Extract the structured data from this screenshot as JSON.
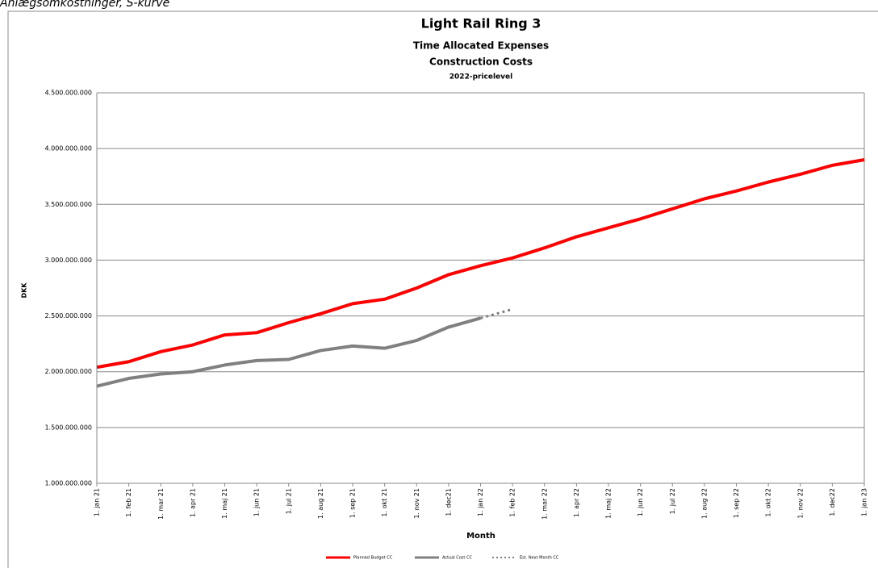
{
  "heading": "Anlægsomkostninger, S-kurve",
  "chart_data": {
    "type": "line",
    "title": "Light Rail Ring 3",
    "subtitle": "Time Allocated Expenses",
    "subtitle2": "Construction Costs",
    "subtitle3": "2022-pricelevel",
    "y_label": "DKK",
    "x_label": "Month",
    "categories": [
      "1. jan 21",
      "1. feb 21",
      "1. mar 21",
      "1. apr 21",
      "1. maj 21",
      "1. jun 21",
      "1. jul 21",
      "1. aug 21",
      "1. sep 21",
      "1. okt 21",
      "1. nov 21",
      "1. dec21",
      "1. jan 22",
      "1. feb 22",
      "1. mar 22",
      "1. apr 22",
      "1. maj 22",
      "1. jun 22",
      "1. jul 22",
      "1. aug 22",
      "1. sep 22",
      "1. okt 22",
      "1. nov 22",
      "1. dec22",
      "1. jan 23"
    ],
    "series": [
      {
        "name": "Planned Budget CC",
        "color": "#ff0000",
        "dotted": false,
        "values": [
          2040000000,
          2090000000,
          2180000000,
          2240000000,
          2330000000,
          2350000000,
          2440000000,
          2520000000,
          2610000000,
          2650000000,
          2750000000,
          2870000000,
          2950000000,
          3020000000,
          3110000000,
          3210000000,
          3290000000,
          3370000000,
          3460000000,
          3550000000,
          3620000000,
          3700000000,
          3770000000,
          3850000000,
          3900000000
        ]
      },
      {
        "name": "Actual Cost CC",
        "color": "#808080",
        "dotted": false,
        "values": [
          1870000000,
          1940000000,
          1980000000,
          2000000000,
          2060000000,
          2100000000,
          2110000000,
          2190000000,
          2230000000,
          2210000000,
          2280000000,
          2400000000,
          2480000000,
          null,
          null,
          null,
          null,
          null,
          null,
          null,
          null,
          null,
          null,
          null,
          null
        ]
      },
      {
        "name": "Est. Next Month CC",
        "color": "#808080",
        "dotted": true,
        "values": [
          null,
          null,
          null,
          null,
          null,
          null,
          null,
          null,
          null,
          null,
          null,
          null,
          2480000000,
          2560000000,
          null,
          null,
          null,
          null,
          null,
          null,
          null,
          null,
          null,
          null,
          null
        ]
      }
    ],
    "ylim": [
      1000000000,
      4500000000
    ],
    "yticks": [
      {
        "value": 1000000000,
        "label": "1.000.000.000"
      },
      {
        "value": 1500000000,
        "label": "1.500.000.000"
      },
      {
        "value": 2000000000,
        "label": "2.000.000.000"
      },
      {
        "value": 2500000000,
        "label": "2.500.000.000"
      },
      {
        "value": 3000000000,
        "label": "3.000.000.000"
      },
      {
        "value": 3500000000,
        "label": "3.500.000.000"
      },
      {
        "value": 4000000000,
        "label": "4.000.000.000"
      },
      {
        "value": 4500000000,
        "label": "4.500.000.000"
      }
    ],
    "grid": true,
    "legend": "bottom"
  }
}
